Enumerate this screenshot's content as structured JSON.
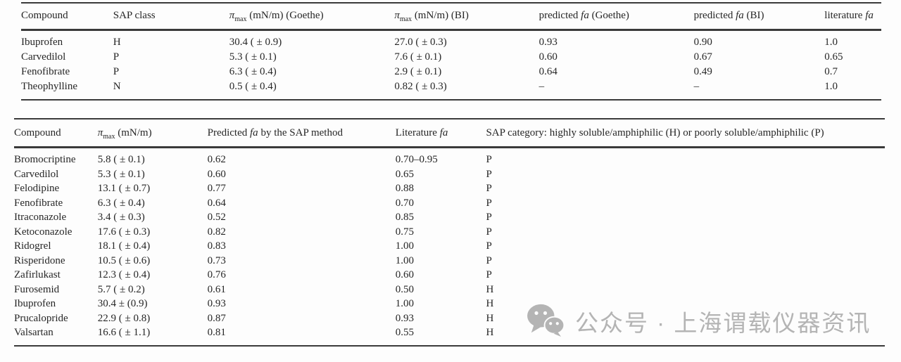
{
  "colors": {
    "rule": "#3a3a3a",
    "text": "#262626",
    "watermark_gray": "#b4b4b4",
    "background": "#fdfdfd"
  },
  "watermark": {
    "icon": "wechat-icon",
    "text": "公众号 · 上海谓载仪器资讯"
  },
  "tables": [
    {
      "name": "sap-goethe-bi-comparison-table",
      "columns": [
        [
          {
            "t": "Compound"
          }
        ],
        [
          {
            "t": "SAP class"
          }
        ],
        [
          {
            "t": "π",
            "s": "i"
          },
          {
            "t": "max",
            "s": "sub"
          },
          {
            "t": " (mN/m) (Goethe)"
          }
        ],
        [
          {
            "t": "π",
            "s": "i"
          },
          {
            "t": "max",
            "s": "sub"
          },
          {
            "t": " (mN/m) (BI)"
          }
        ],
        [
          {
            "t": "predicted "
          },
          {
            "t": "fa",
            "s": "i"
          },
          {
            "t": " (Goethe)"
          }
        ],
        [
          {
            "t": "predicted "
          },
          {
            "t": "fa",
            "s": "i"
          },
          {
            "t": " (BI)"
          }
        ],
        [
          {
            "t": "literature "
          },
          {
            "t": "fa",
            "s": "i"
          }
        ]
      ],
      "rows": [
        [
          "Ibuprofen",
          "H",
          "30.4 ( ± 0.9)",
          "27.0 ( ± 0.3)",
          "0.93",
          "0.90",
          "1.0"
        ],
        [
          "Carvedilol",
          "P",
          "5.3 ( ± 0.1)",
          "7.6 ( ± 0.1)",
          "0.60",
          "0.67",
          "0.65"
        ],
        [
          "Fenofibrate",
          "P",
          "6.3 ( ± 0.4)",
          "2.9 ( ± 0.1)",
          "0.64",
          "0.49",
          "0.7"
        ],
        [
          "Theophylline",
          "N",
          "0.5 ( ± 0.4)",
          "0.82 ( ± 0.3)",
          "–",
          "–",
          "1.0"
        ]
      ]
    },
    {
      "name": "sap-method-prediction-table",
      "columns": [
        [
          {
            "t": "Compound"
          }
        ],
        [
          {
            "t": "π",
            "s": "i"
          },
          {
            "t": "max",
            "s": "sub"
          },
          {
            "t": " (mN/m)"
          }
        ],
        [
          {
            "t": "Predicted "
          },
          {
            "t": "fa",
            "s": "i"
          },
          {
            "t": " by the SAP method"
          }
        ],
        [
          {
            "t": "Literature "
          },
          {
            "t": "fa",
            "s": "i"
          }
        ],
        [
          {
            "t": "SAP category: highly soluble/amphiphilic (H) or poorly soluble/amphiphilic (P)"
          }
        ]
      ],
      "rows": [
        [
          "Bromocriptine",
          "5.8 ( ± 0.1)",
          "0.62",
          "0.70–0.95",
          "P"
        ],
        [
          "Carvedilol",
          "5.3 ( ± 0.1)",
          "0.60",
          "0.65",
          "P"
        ],
        [
          "Felodipine",
          "13.1 ( ± 0.7)",
          "0.77",
          "0.88",
          "P"
        ],
        [
          "Fenofibrate",
          "6.3 ( ± 0.4)",
          "0.64",
          "0.70",
          "P"
        ],
        [
          "Itraconazole",
          "3.4 ( ± 0.3)",
          "0.52",
          "0.85",
          "P"
        ],
        [
          "Ketoconazole",
          "17.6 ( ± 0.3)",
          "0.82",
          "0.75",
          "P"
        ],
        [
          "Ridogrel",
          "18.1 ( ± 0.4)",
          "0.83",
          "1.00",
          "P"
        ],
        [
          "Risperidone",
          "10.5 ( ± 0.6)",
          "0.73",
          "1.00",
          "P"
        ],
        [
          "Zafirlukast",
          "12.3 ( ± 0.4)",
          "0.76",
          "0.60",
          "P"
        ],
        [
          "Furosemid",
          "5.7 ( ± 0.2)",
          "0.61",
          "0.50",
          "H"
        ],
        [
          "Ibuprofen",
          "30.4 ± (0.9)",
          "0.93",
          "1.00",
          "H"
        ],
        [
          "Prucalopride",
          "22.9 ( ± 0.8)",
          "0.87",
          "0.93",
          "H"
        ],
        [
          "Valsartan",
          "16.6 ( ± 1.1)",
          "0.81",
          "0.55",
          "H"
        ]
      ]
    }
  ]
}
